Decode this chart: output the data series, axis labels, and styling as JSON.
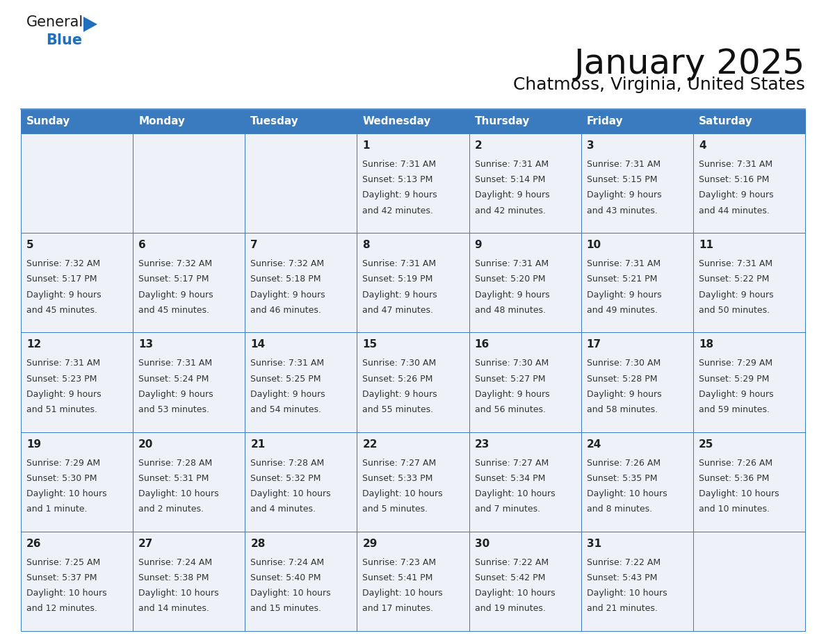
{
  "title": "January 2025",
  "subtitle": "Chatmoss, Virginia, United States",
  "header_bg": "#3a7bbf",
  "header_text": "#ffffff",
  "cell_bg": "#eef2f8",
  "border_color": "#3a7bbf",
  "text_color": "#333333",
  "day_number_color": "#222222",
  "day_headers": [
    "Sunday",
    "Monday",
    "Tuesday",
    "Wednesday",
    "Thursday",
    "Friday",
    "Saturday"
  ],
  "days": [
    {
      "day": 1,
      "col": 3,
      "row": 0,
      "sunrise": "7:31 AM",
      "sunset": "5:13 PM",
      "dl1": "Daylight: 9 hours",
      "dl2": "and 42 minutes."
    },
    {
      "day": 2,
      "col": 4,
      "row": 0,
      "sunrise": "7:31 AM",
      "sunset": "5:14 PM",
      "dl1": "Daylight: 9 hours",
      "dl2": "and 42 minutes."
    },
    {
      "day": 3,
      "col": 5,
      "row": 0,
      "sunrise": "7:31 AM",
      "sunset": "5:15 PM",
      "dl1": "Daylight: 9 hours",
      "dl2": "and 43 minutes."
    },
    {
      "day": 4,
      "col": 6,
      "row": 0,
      "sunrise": "7:31 AM",
      "sunset": "5:16 PM",
      "dl1": "Daylight: 9 hours",
      "dl2": "and 44 minutes."
    },
    {
      "day": 5,
      "col": 0,
      "row": 1,
      "sunrise": "7:32 AM",
      "sunset": "5:17 PM",
      "dl1": "Daylight: 9 hours",
      "dl2": "and 45 minutes."
    },
    {
      "day": 6,
      "col": 1,
      "row": 1,
      "sunrise": "7:32 AM",
      "sunset": "5:17 PM",
      "dl1": "Daylight: 9 hours",
      "dl2": "and 45 minutes."
    },
    {
      "day": 7,
      "col": 2,
      "row": 1,
      "sunrise": "7:32 AM",
      "sunset": "5:18 PM",
      "dl1": "Daylight: 9 hours",
      "dl2": "and 46 minutes."
    },
    {
      "day": 8,
      "col": 3,
      "row": 1,
      "sunrise": "7:31 AM",
      "sunset": "5:19 PM",
      "dl1": "Daylight: 9 hours",
      "dl2": "and 47 minutes."
    },
    {
      "day": 9,
      "col": 4,
      "row": 1,
      "sunrise": "7:31 AM",
      "sunset": "5:20 PM",
      "dl1": "Daylight: 9 hours",
      "dl2": "and 48 minutes."
    },
    {
      "day": 10,
      "col": 5,
      "row": 1,
      "sunrise": "7:31 AM",
      "sunset": "5:21 PM",
      "dl1": "Daylight: 9 hours",
      "dl2": "and 49 minutes."
    },
    {
      "day": 11,
      "col": 6,
      "row": 1,
      "sunrise": "7:31 AM",
      "sunset": "5:22 PM",
      "dl1": "Daylight: 9 hours",
      "dl2": "and 50 minutes."
    },
    {
      "day": 12,
      "col": 0,
      "row": 2,
      "sunrise": "7:31 AM",
      "sunset": "5:23 PM",
      "dl1": "Daylight: 9 hours",
      "dl2": "and 51 minutes."
    },
    {
      "day": 13,
      "col": 1,
      "row": 2,
      "sunrise": "7:31 AM",
      "sunset": "5:24 PM",
      "dl1": "Daylight: 9 hours",
      "dl2": "and 53 minutes."
    },
    {
      "day": 14,
      "col": 2,
      "row": 2,
      "sunrise": "7:31 AM",
      "sunset": "5:25 PM",
      "dl1": "Daylight: 9 hours",
      "dl2": "and 54 minutes."
    },
    {
      "day": 15,
      "col": 3,
      "row": 2,
      "sunrise": "7:30 AM",
      "sunset": "5:26 PM",
      "dl1": "Daylight: 9 hours",
      "dl2": "and 55 minutes."
    },
    {
      "day": 16,
      "col": 4,
      "row": 2,
      "sunrise": "7:30 AM",
      "sunset": "5:27 PM",
      "dl1": "Daylight: 9 hours",
      "dl2": "and 56 minutes."
    },
    {
      "day": 17,
      "col": 5,
      "row": 2,
      "sunrise": "7:30 AM",
      "sunset": "5:28 PM",
      "dl1": "Daylight: 9 hours",
      "dl2": "and 58 minutes."
    },
    {
      "day": 18,
      "col": 6,
      "row": 2,
      "sunrise": "7:29 AM",
      "sunset": "5:29 PM",
      "dl1": "Daylight: 9 hours",
      "dl2": "and 59 minutes."
    },
    {
      "day": 19,
      "col": 0,
      "row": 3,
      "sunrise": "7:29 AM",
      "sunset": "5:30 PM",
      "dl1": "Daylight: 10 hours",
      "dl2": "and 1 minute."
    },
    {
      "day": 20,
      "col": 1,
      "row": 3,
      "sunrise": "7:28 AM",
      "sunset": "5:31 PM",
      "dl1": "Daylight: 10 hours",
      "dl2": "and 2 minutes."
    },
    {
      "day": 21,
      "col": 2,
      "row": 3,
      "sunrise": "7:28 AM",
      "sunset": "5:32 PM",
      "dl1": "Daylight: 10 hours",
      "dl2": "and 4 minutes."
    },
    {
      "day": 22,
      "col": 3,
      "row": 3,
      "sunrise": "7:27 AM",
      "sunset": "5:33 PM",
      "dl1": "Daylight: 10 hours",
      "dl2": "and 5 minutes."
    },
    {
      "day": 23,
      "col": 4,
      "row": 3,
      "sunrise": "7:27 AM",
      "sunset": "5:34 PM",
      "dl1": "Daylight: 10 hours",
      "dl2": "and 7 minutes."
    },
    {
      "day": 24,
      "col": 5,
      "row": 3,
      "sunrise": "7:26 AM",
      "sunset": "5:35 PM",
      "dl1": "Daylight: 10 hours",
      "dl2": "and 8 minutes."
    },
    {
      "day": 25,
      "col": 6,
      "row": 3,
      "sunrise": "7:26 AM",
      "sunset": "5:36 PM",
      "dl1": "Daylight: 10 hours",
      "dl2": "and 10 minutes."
    },
    {
      "day": 26,
      "col": 0,
      "row": 4,
      "sunrise": "7:25 AM",
      "sunset": "5:37 PM",
      "dl1": "Daylight: 10 hours",
      "dl2": "and 12 minutes."
    },
    {
      "day": 27,
      "col": 1,
      "row": 4,
      "sunrise": "7:24 AM",
      "sunset": "5:38 PM",
      "dl1": "Daylight: 10 hours",
      "dl2": "and 14 minutes."
    },
    {
      "day": 28,
      "col": 2,
      "row": 4,
      "sunrise": "7:24 AM",
      "sunset": "5:40 PM",
      "dl1": "Daylight: 10 hours",
      "dl2": "and 15 minutes."
    },
    {
      "day": 29,
      "col": 3,
      "row": 4,
      "sunrise": "7:23 AM",
      "sunset": "5:41 PM",
      "dl1": "Daylight: 10 hours",
      "dl2": "and 17 minutes."
    },
    {
      "day": 30,
      "col": 4,
      "row": 4,
      "sunrise": "7:22 AM",
      "sunset": "5:42 PM",
      "dl1": "Daylight: 10 hours",
      "dl2": "and 19 minutes."
    },
    {
      "day": 31,
      "col": 5,
      "row": 4,
      "sunrise": "7:22 AM",
      "sunset": "5:43 PM",
      "dl1": "Daylight: 10 hours",
      "dl2": "and 21 minutes."
    }
  ],
  "logo_text1": "General",
  "logo_text2": "Blue",
  "logo_color1": "#1a1a1a",
  "logo_color2": "#2070bf",
  "logo_triangle_color": "#2070bf",
  "title_fontsize": 36,
  "subtitle_fontsize": 18,
  "header_fontsize": 11,
  "day_num_fontsize": 11,
  "cell_text_fontsize": 9
}
